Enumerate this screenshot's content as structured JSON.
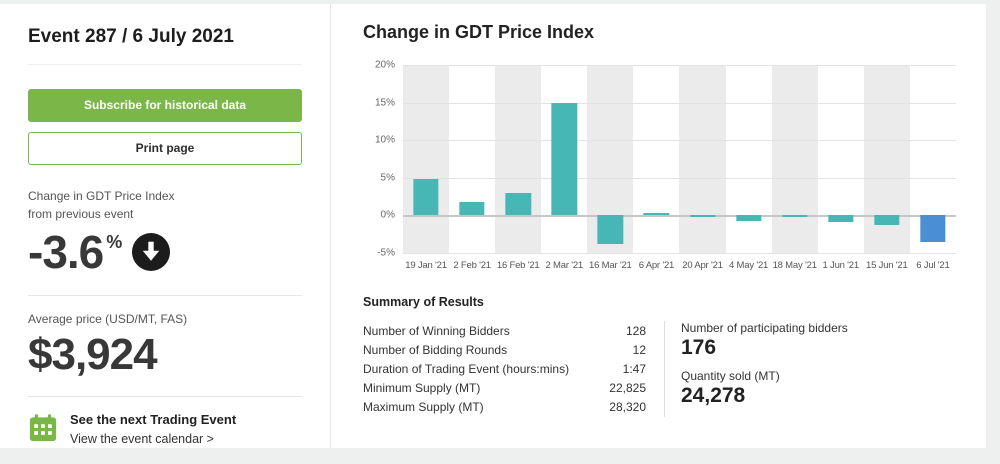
{
  "sidebar": {
    "title": "Event 287 / 6 July 2021",
    "subscribe_label": "Subscribe for historical data",
    "print_label": "Print page",
    "change_label": "Change in GDT Price Index\nfrom previous event",
    "change_value": "-3.6",
    "change_unit": "%",
    "avg_price_label": "Average price (USD/MT, FAS)",
    "avg_price_value": "$3,924",
    "next_event_title": "See the next Trading Event",
    "next_event_link": "View the event calendar >"
  },
  "main": {
    "chart_title": "Change in GDT Price Index",
    "summary": {
      "heading": "Summary of Results",
      "rows": [
        {
          "label": "Number of Winning Bidders",
          "value": "128"
        },
        {
          "label": "Number of Bidding Rounds",
          "value": "12"
        },
        {
          "label": "Duration of Trading Event (hours:mins)",
          "value": "1:47"
        },
        {
          "label": "Minimum Supply (MT)",
          "value": "22,825"
        },
        {
          "label": "Maximum Supply (MT)",
          "value": "28,320"
        }
      ],
      "participating_label": "Number of participating bidders",
      "participating_value": "176",
      "quantity_label": "Quantity sold (MT)",
      "quantity_value": "24,278"
    }
  },
  "chart_data": {
    "type": "bar",
    "title": "Change in GDT Price Index",
    "categories": [
      "19 Jan '21",
      "2 Feb '21",
      "16 Feb '21",
      "2 Mar '21",
      "16 Mar '21",
      "6 Apr '21",
      "20 Apr '21",
      "4 May '21",
      "18 May '21",
      "1 Jun '21",
      "15 Jun '21",
      "6 Jul '21"
    ],
    "values": [
      4.8,
      1.8,
      3.0,
      15.0,
      -3.8,
      0.3,
      -0.1,
      -0.7,
      -0.2,
      -0.9,
      -1.3,
      -3.6
    ],
    "ylabel": "",
    "xlabel": "",
    "ylim": [
      -5,
      20
    ],
    "yticks": [
      20,
      15,
      10,
      5,
      0,
      -5
    ],
    "ytick_labels": [
      "20%",
      "15%",
      "10%",
      "5%",
      "0%",
      "-5%"
    ],
    "grid": true,
    "legend": "none",
    "bar_color": "#47b7b5",
    "last_bar_color": "#4a8ed4",
    "stripe_color": "#ebebeb"
  },
  "colors": {
    "accent_green": "#7ab648",
    "bar_teal": "#47b7b5",
    "bar_blue": "#4a8ed4",
    "text_dark": "#333333",
    "page_background": "#eef0ef"
  }
}
